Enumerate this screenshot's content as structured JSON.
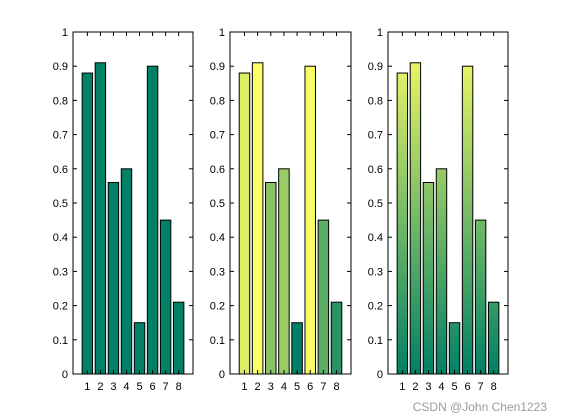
{
  "chart_data": [
    {
      "type": "bar",
      "colormap": "flat",
      "categories": [
        "1",
        "2",
        "3",
        "4",
        "5",
        "6",
        "7",
        "8"
      ],
      "values": [
        0.88,
        0.91,
        0.56,
        0.6,
        0.15,
        0.9,
        0.45,
        0.21
      ],
      "bar_colors": [
        "#008066",
        "#008066",
        "#008066",
        "#008066",
        "#008066",
        "#008066",
        "#008066",
        "#008066"
      ],
      "ylim": [
        0,
        1
      ],
      "yticks": [
        "0",
        "0.1",
        "0.2",
        "0.3",
        "0.4",
        "0.5",
        "0.6",
        "0.7",
        "0.8",
        "0.9",
        "1"
      ],
      "title": "",
      "xlabel": "",
      "ylabel": ""
    },
    {
      "type": "bar",
      "colormap": "summer (per-bar color by height)",
      "categories": [
        "1",
        "2",
        "3",
        "4",
        "5",
        "6",
        "7",
        "8"
      ],
      "values": [
        0.88,
        0.91,
        0.56,
        0.6,
        0.15,
        0.9,
        0.45,
        0.21
      ],
      "bar_colors": [
        "#ddee66",
        "#fefe66",
        "#88c466",
        "#99cc66",
        "#008066",
        "#f7fb66",
        "#5dad66",
        "#279366"
      ],
      "ylim": [
        0,
        1
      ],
      "yticks": [
        "0",
        "0.1",
        "0.2",
        "0.3",
        "0.4",
        "0.5",
        "0.6",
        "0.7",
        "0.8",
        "0.9",
        "1"
      ],
      "title": "",
      "xlabel": "",
      "ylabel": ""
    },
    {
      "type": "bar",
      "colormap": "summer (vertical gradient)",
      "categories": [
        "1",
        "2",
        "3",
        "4",
        "5",
        "6",
        "7",
        "8"
      ],
      "values": [
        0.88,
        0.91,
        0.56,
        0.6,
        0.15,
        0.9,
        0.45,
        0.21
      ],
      "bar_colors": [
        "gradient",
        "gradient",
        "gradient",
        "gradient",
        "gradient",
        "gradient",
        "gradient",
        "gradient"
      ],
      "gradient_bottom": "#008066",
      "gradient_top": "#ffff66",
      "ylim": [
        0,
        1
      ],
      "yticks": [
        "0",
        "0.1",
        "0.2",
        "0.3",
        "0.4",
        "0.5",
        "0.6",
        "0.7",
        "0.8",
        "0.9",
        "1"
      ],
      "title": "",
      "xlabel": "",
      "ylabel": ""
    }
  ],
  "watermark": "CSDN @John Chen1223"
}
